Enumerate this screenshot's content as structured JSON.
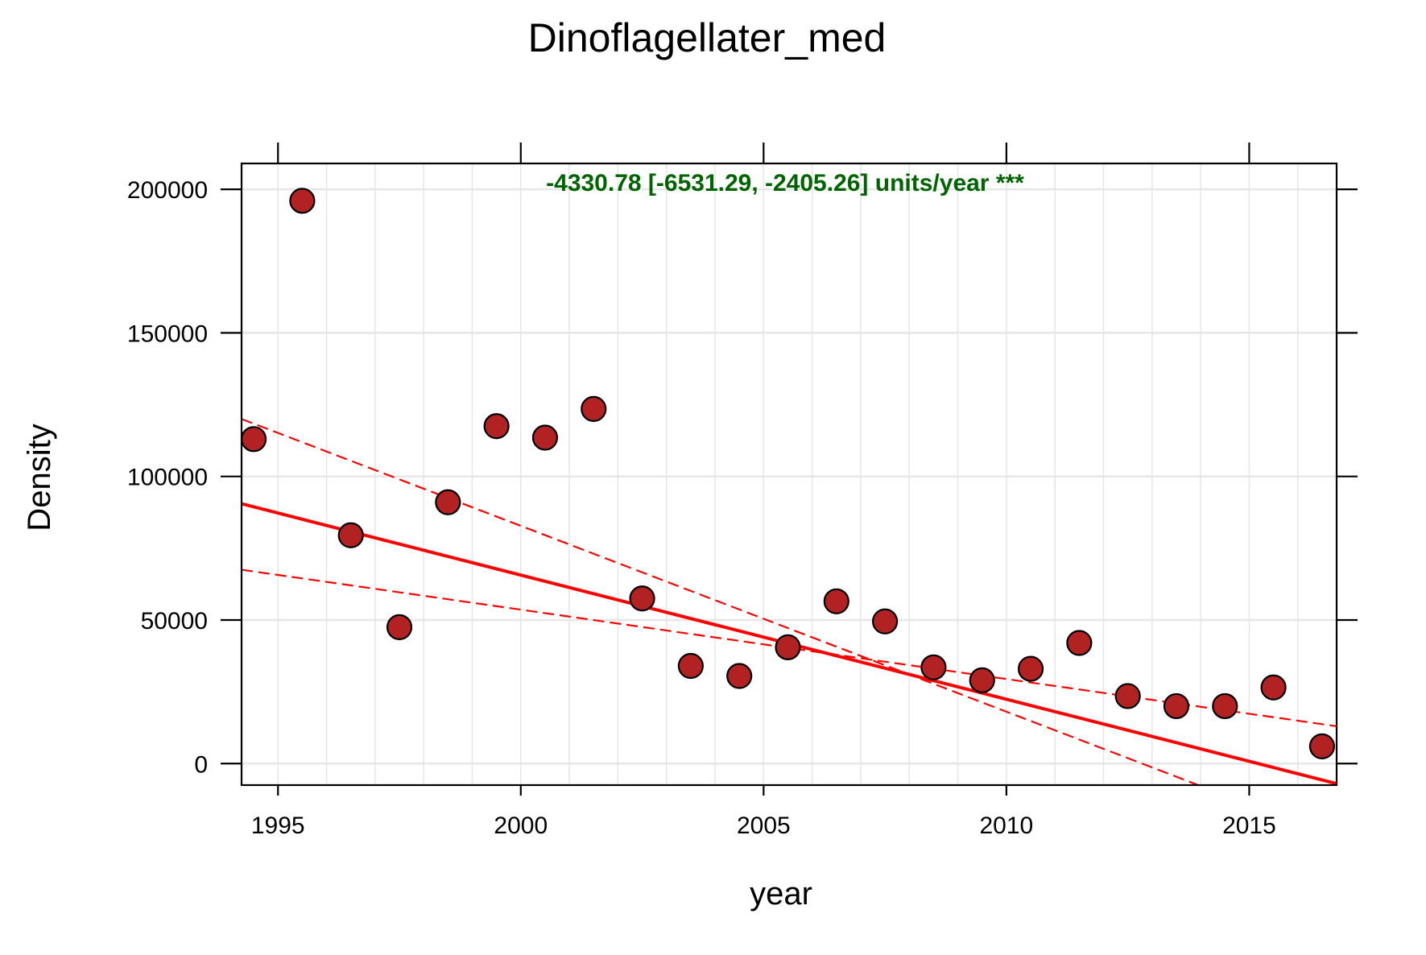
{
  "chart_data": {
    "type": "scatter",
    "title": "Dinoflagellater_med",
    "xlabel": "year",
    "ylabel": "Density",
    "xlim": [
      1994.25,
      2016.8
    ],
    "ylim": [
      -7500,
      209000
    ],
    "xticks": [
      1995,
      2000,
      2005,
      2010,
      2015
    ],
    "xtick_labels": [
      "1995",
      "2000",
      "2005",
      "2010",
      "2015"
    ],
    "yticks": [
      0,
      50000,
      100000,
      150000,
      200000
    ],
    "ytick_labels": [
      "0",
      "50000",
      "100000",
      "150000",
      "200000"
    ],
    "x_minor_grid_step": 1,
    "grid": true,
    "annotation": "-4330.78 [-6531.29, -2405.26] units/year ***",
    "colors": {
      "point_fill": "#b22222",
      "point_stroke": "#000000",
      "trend": "#ff0000",
      "annotation": "#006400",
      "grid": "#e6e6e6"
    },
    "series": [
      {
        "type": "scatter",
        "x": [
          1994.5,
          1995.5,
          1996.5,
          1997.5,
          1998.5,
          1999.5,
          2000.5,
          2001.5,
          2002.5,
          2003.5,
          2004.5,
          2005.5,
          2006.5,
          2007.5,
          2008.5,
          2009.5,
          2010.5,
          2011.5,
          2012.5,
          2013.5,
          2014.5,
          2015.5,
          2016.5
        ],
        "y": [
          113000,
          196000,
          79500,
          47500,
          91000,
          117500,
          113500,
          123500,
          57500,
          34000,
          30500,
          40500,
          56500,
          49500,
          33500,
          29000,
          33000,
          42000,
          23500,
          20000,
          20000,
          26500,
          6000
        ]
      },
      {
        "type": "line",
        "style": "solid",
        "x": [
          1994.25,
          2016.8
        ],
        "y": [
          90500,
          -7000
        ]
      },
      {
        "type": "line",
        "style": "dashed",
        "x": [
          1994.25,
          2013.95
        ],
        "y": [
          120000,
          -7500
        ]
      },
      {
        "type": "line",
        "style": "dashed",
        "x": [
          1994.25,
          2016.8
        ],
        "y": [
          67500,
          13000
        ]
      }
    ]
  }
}
